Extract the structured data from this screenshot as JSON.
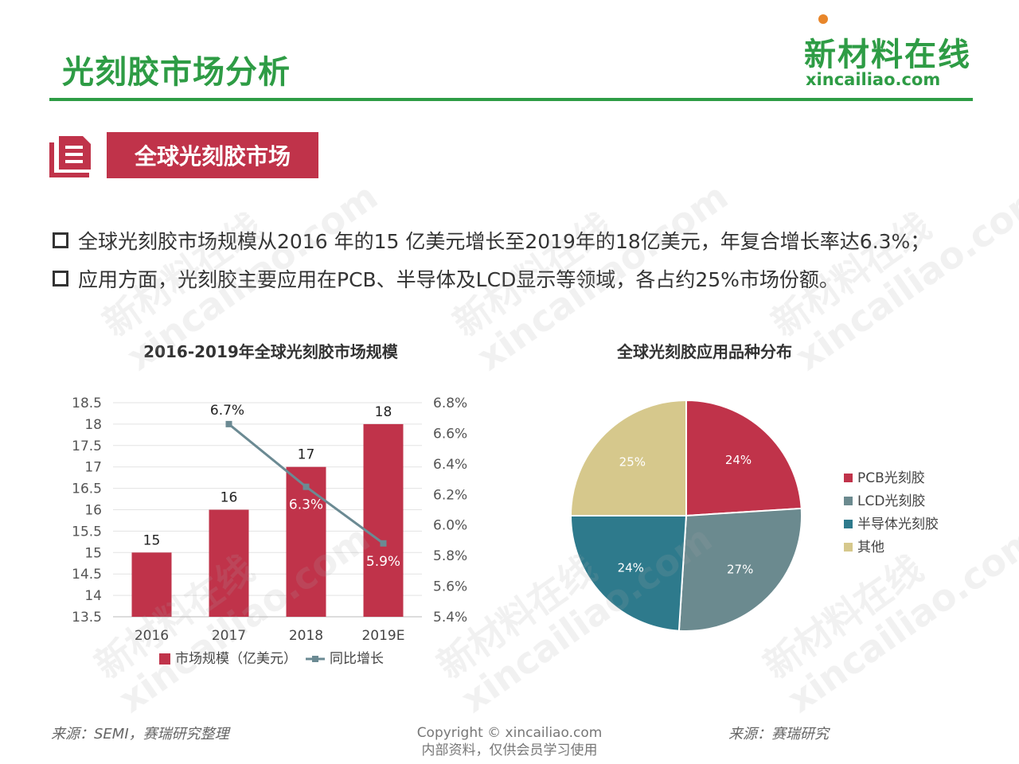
{
  "page": {
    "title": "光刻胶市场分析",
    "logo_cn": "新材料在线",
    "logo_en": "xincailiao.com",
    "section_tag": "全球光刻胶市场",
    "bullets": [
      "全球光刻胶市场规模从2016 年的15 亿美元增长至2019年的18亿美元，年复合增长率达6.3%；",
      "应用方面，光刻胶主要应用在PCB、半导体及LCD显示等领域，各占约25%市场份额。"
    ],
    "source_left": "来源：SEMI，赛瑞研究整理",
    "source_right": "来源：赛瑞研究",
    "copyright_line1": "Copyright © xincailiao.com",
    "copyright_line2": "内部资料，仅供会员学习使用",
    "watermark_cn": "新材料在线",
    "watermark_en": "xincailiao.com"
  },
  "colors": {
    "brand_green": "#2e9c45",
    "tag_red": "#c0334a",
    "bar_red": "#c0334a",
    "line_gray": "#6b8a93",
    "pie_pcb": "#c0334a",
    "pie_lcd": "#6b8a8f",
    "pie_semi": "#2e7a8c",
    "pie_other": "#d6c88c"
  },
  "chart_data": [
    {
      "type": "bar",
      "title": "2016-2019年全球光刻胶市场规模",
      "categories": [
        "2016",
        "2017",
        "2018",
        "2019E"
      ],
      "ylim": [
        13.5,
        18.5
      ],
      "yticks": [
        "13.5",
        "14",
        "14.5",
        "15",
        "15.5",
        "16",
        "16.5",
        "17",
        "17.5",
        "18",
        "18.5"
      ],
      "y2lim": [
        5.4,
        6.8
      ],
      "y2ticks": [
        "5.4%",
        "5.6%",
        "5.8%",
        "6.0%",
        "6.2%",
        "6.4%",
        "6.6%",
        "6.8%"
      ],
      "series": [
        {
          "name": "市场规模（亿美元）",
          "kind": "bar",
          "axis": "left",
          "values": [
            15,
            16,
            17,
            18
          ],
          "labels": [
            "15",
            "16",
            "17",
            "18"
          ]
        },
        {
          "name": "同比增长",
          "kind": "line",
          "axis": "right",
          "values": [
            null,
            6.66,
            6.25,
            5.88
          ],
          "labels": [
            "",
            "6.7%",
            "6.3%",
            "5.9%"
          ]
        }
      ],
      "grid": true,
      "legend": "bottom"
    },
    {
      "type": "pie",
      "title": "全球光刻胶应用品种分布",
      "slices": [
        {
          "label": "PCB光刻胶",
          "value": 24,
          "text": "24%"
        },
        {
          "label": "LCD光刻胶",
          "value": 27,
          "text": "27%"
        },
        {
          "label": "半导体光刻胶",
          "value": 24,
          "text": "24%"
        },
        {
          "label": "其他",
          "value": 25,
          "text": "25%"
        }
      ],
      "legend": "right"
    }
  ]
}
